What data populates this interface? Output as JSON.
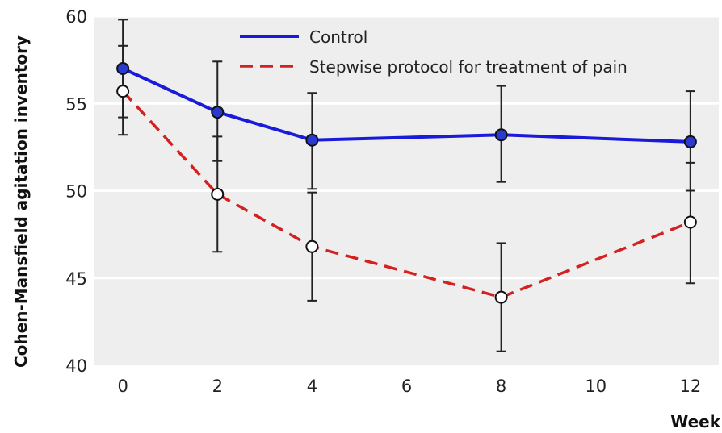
{
  "chart_data": {
    "type": "line",
    "title": "",
    "xlabel": "Week",
    "ylabel": "Cohen-Mansfield agitation inventory",
    "xlim": [
      -0.6,
      12.6
    ],
    "ylim": [
      40,
      60
    ],
    "x_ticks": [
      0,
      2,
      4,
      6,
      8,
      10,
      12
    ],
    "y_ticks": [
      40,
      45,
      50,
      55,
      60
    ],
    "x_tick_labels": [
      "0",
      "2",
      "4",
      "6",
      "8",
      "10",
      "12"
    ],
    "y_tick_labels": [
      "40",
      "45",
      "50",
      "55",
      "60"
    ],
    "grid": "horizontal",
    "legend_position": "top",
    "colors": {
      "plot_bg": "#eeeeee",
      "grid": "#ffffff"
    },
    "series": [
      {
        "name": "Control",
        "color": "#1a1adb",
        "line_style": "solid",
        "marker_fill": "#2a3ad0",
        "x": [
          0,
          2,
          4,
          8,
          12
        ],
        "y": [
          57.0,
          54.5,
          52.9,
          53.2,
          52.8
        ],
        "err_low": [
          54.2,
          51.7,
          50.1,
          50.5,
          50.0
        ],
        "err_high": [
          59.8,
          57.4,
          55.6,
          56.0,
          55.7
        ]
      },
      {
        "name": "Stepwise protocol for treatment of pain",
        "color": "#d42020",
        "line_style": "dashed",
        "marker_fill": "#ffffff",
        "x": [
          0,
          2,
          4,
          8,
          12
        ],
        "y": [
          55.7,
          49.8,
          46.8,
          43.9,
          48.2
        ],
        "err_low": [
          53.2,
          46.5,
          43.7,
          40.8,
          44.7
        ],
        "err_high": [
          58.3,
          53.1,
          49.9,
          47.0,
          51.6
        ]
      }
    ]
  }
}
